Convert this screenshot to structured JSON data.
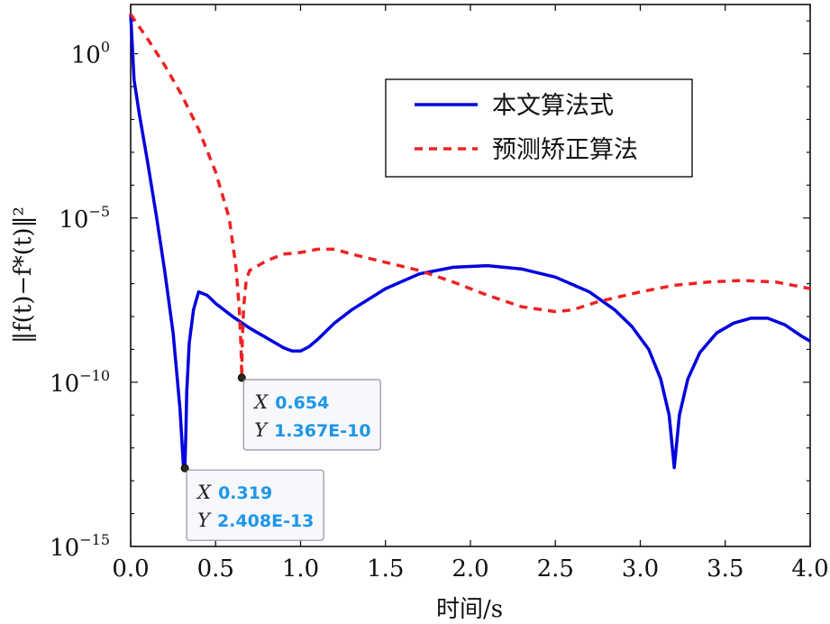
{
  "chart_data": {
    "type": "line",
    "xlabel": "时间/s",
    "ylabel": "‖f(t)−f*(t)‖²",
    "xlim": [
      0.0,
      4.0
    ],
    "ylim_log10": [
      -15,
      1.5
    ],
    "y_scale": "log",
    "grid": false,
    "legend_position": "top-right",
    "x_ticks": [
      "0.0",
      "0.5",
      "1.0",
      "1.5",
      "2.0",
      "2.5",
      "3.0",
      "3.5",
      "4.0"
    ],
    "y_ticks": [
      {
        "exp": 0,
        "base": "10",
        "sup": "0"
      },
      {
        "exp": -5,
        "base": "10",
        "sup": "−5"
      },
      {
        "exp": -10,
        "base": "10",
        "sup": "−10"
      },
      {
        "exp": -15,
        "base": "10",
        "sup": "−15"
      }
    ],
    "series": [
      {
        "name": "本文算法式",
        "color": "#0000dd",
        "style": "solid",
        "points_log10": [
          [
            0.0,
            1.2
          ],
          [
            0.02,
            -0.8
          ],
          [
            0.05,
            -1.8
          ],
          [
            0.1,
            -3.3
          ],
          [
            0.15,
            -4.9
          ],
          [
            0.2,
            -6.6
          ],
          [
            0.25,
            -8.5
          ],
          [
            0.29,
            -10.8
          ],
          [
            0.31,
            -12.5
          ],
          [
            0.319,
            -12.62
          ],
          [
            0.325,
            -11.5
          ],
          [
            0.33,
            -10.3
          ],
          [
            0.345,
            -8.8
          ],
          [
            0.37,
            -7.8
          ],
          [
            0.4,
            -7.25
          ],
          [
            0.45,
            -7.35
          ],
          [
            0.5,
            -7.6
          ],
          [
            0.6,
            -8.0
          ],
          [
            0.7,
            -8.35
          ],
          [
            0.8,
            -8.65
          ],
          [
            0.9,
            -8.95
          ],
          [
            0.95,
            -9.05
          ],
          [
            1.0,
            -9.05
          ],
          [
            1.05,
            -8.92
          ],
          [
            1.1,
            -8.7
          ],
          [
            1.2,
            -8.2
          ],
          [
            1.3,
            -7.8
          ],
          [
            1.5,
            -7.15
          ],
          [
            1.7,
            -6.7
          ],
          [
            1.9,
            -6.5
          ],
          [
            2.1,
            -6.45
          ],
          [
            2.3,
            -6.55
          ],
          [
            2.5,
            -6.8
          ],
          [
            2.7,
            -7.25
          ],
          [
            2.85,
            -7.8
          ],
          [
            2.95,
            -8.3
          ],
          [
            3.05,
            -9.0
          ],
          [
            3.12,
            -9.9
          ],
          [
            3.17,
            -11.0
          ],
          [
            3.2,
            -12.6
          ],
          [
            3.23,
            -11.0
          ],
          [
            3.28,
            -9.9
          ],
          [
            3.35,
            -9.1
          ],
          [
            3.45,
            -8.5
          ],
          [
            3.55,
            -8.2
          ],
          [
            3.65,
            -8.05
          ],
          [
            3.75,
            -8.05
          ],
          [
            3.85,
            -8.25
          ],
          [
            3.95,
            -8.6
          ],
          [
            4.0,
            -8.75
          ]
        ]
      },
      {
        "name": "预测矫正算法",
        "color": "#ee2222",
        "style": "dashed",
        "points_log10": [
          [
            0.0,
            1.2
          ],
          [
            0.1,
            0.45
          ],
          [
            0.2,
            -0.35
          ],
          [
            0.3,
            -1.25
          ],
          [
            0.4,
            -2.3
          ],
          [
            0.5,
            -3.6
          ],
          [
            0.58,
            -5.0
          ],
          [
            0.62,
            -6.5
          ],
          [
            0.64,
            -7.8
          ],
          [
            0.65,
            -9.0
          ],
          [
            0.654,
            -9.864
          ],
          [
            0.657,
            -8.8
          ],
          [
            0.665,
            -7.7
          ],
          [
            0.68,
            -6.9
          ],
          [
            0.7,
            -6.6
          ],
          [
            0.75,
            -6.45
          ],
          [
            0.8,
            -6.3
          ],
          [
            0.9,
            -6.1
          ],
          [
            1.0,
            -6.05
          ],
          [
            1.1,
            -5.95
          ],
          [
            1.2,
            -5.95
          ],
          [
            1.3,
            -6.1
          ],
          [
            1.5,
            -6.35
          ],
          [
            1.7,
            -6.6
          ],
          [
            1.9,
            -6.95
          ],
          [
            2.1,
            -7.35
          ],
          [
            2.3,
            -7.7
          ],
          [
            2.5,
            -7.85
          ],
          [
            2.6,
            -7.8
          ],
          [
            2.75,
            -7.55
          ],
          [
            3.0,
            -7.25
          ],
          [
            3.2,
            -7.05
          ],
          [
            3.4,
            -6.95
          ],
          [
            3.6,
            -6.9
          ],
          [
            3.8,
            -6.95
          ],
          [
            4.0,
            -7.15
          ]
        ]
      }
    ],
    "datatips": [
      {
        "series": "预测矫正算法",
        "x_value": 0.654,
        "y_log10": -9.864,
        "x_label": "X",
        "y_label": "Y",
        "x_text": "0.654",
        "y_text": "1.367E-10"
      },
      {
        "series": "本文算法式",
        "x_value": 0.319,
        "y_log10": -12.618,
        "x_label": "X",
        "y_label": "Y",
        "x_text": "0.319",
        "y_text": "2.408E-13"
      }
    ]
  }
}
